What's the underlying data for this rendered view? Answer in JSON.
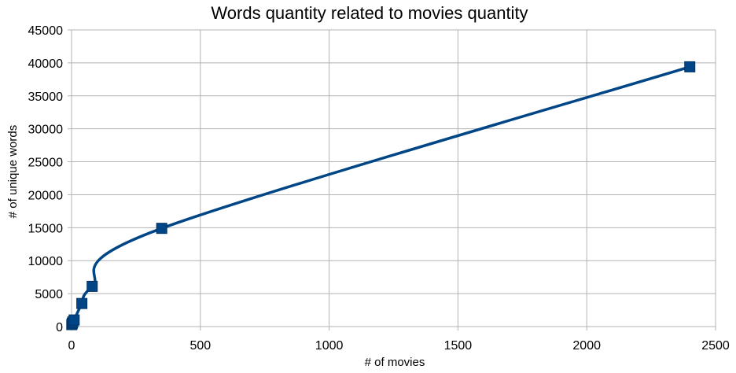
{
  "chart_data": {
    "type": "scatter",
    "title": "Words quantity related to movies quantity",
    "xlabel": "# of movies",
    "ylabel": "# of unique words",
    "xlim": [
      0,
      2500
    ],
    "ylim": [
      0,
      45000
    ],
    "xticks": [
      0,
      500,
      1000,
      1500,
      2000,
      2500
    ],
    "yticks": [
      0,
      5000,
      10000,
      15000,
      20000,
      25000,
      30000,
      35000,
      40000,
      45000
    ],
    "grid": true,
    "legend": "none",
    "line_style": "smooth",
    "series": [
      {
        "color": "#004586",
        "x": [
          1,
          3,
          5,
          10,
          40,
          80,
          350,
          2400
        ],
        "y": [
          300,
          500,
          700,
          1000,
          3500,
          6100,
          14900,
          39400
        ]
      }
    ]
  }
}
